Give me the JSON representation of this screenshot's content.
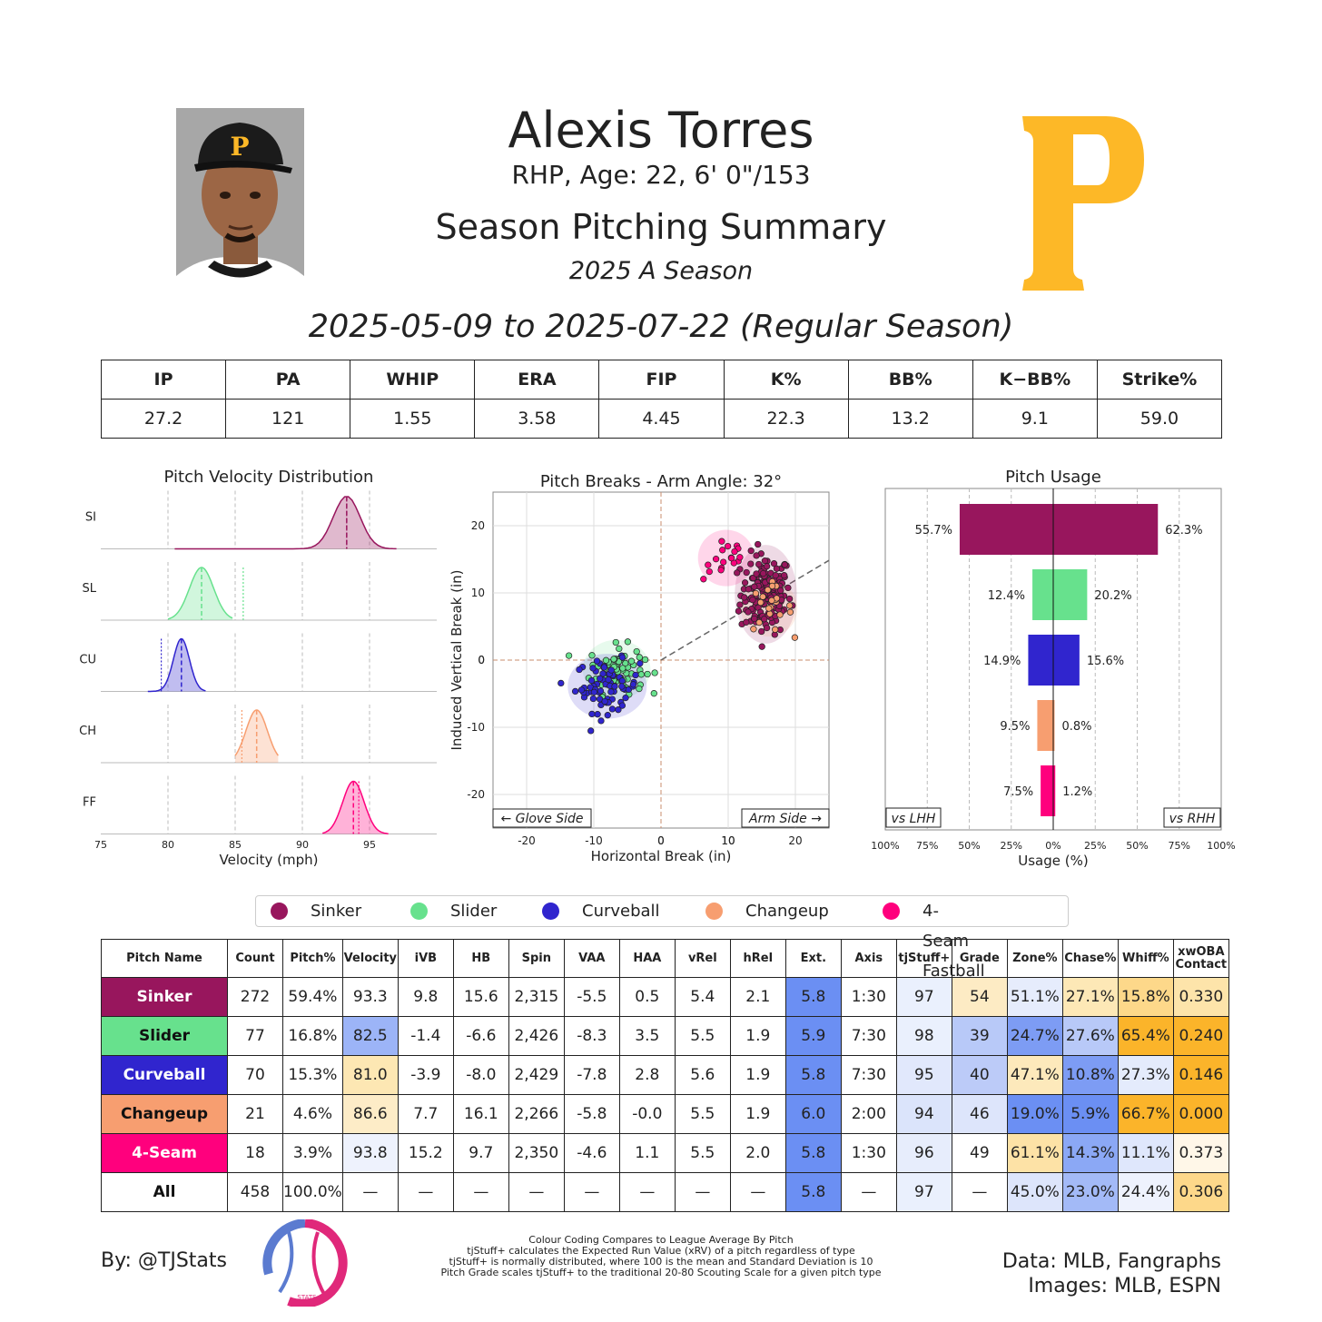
{
  "header": {
    "name": "Alexis Torres",
    "info": "RHP, Age: 22, 6' 0\"/153",
    "title": "Season Pitching Summary",
    "season": "2025 A Season",
    "date_range": "2025-05-09 to 2025-07-22 (Regular Season)"
  },
  "colors": {
    "Sinker": "#98165d",
    "Slider": "#67e18d",
    "Curveball": "#3025ce",
    "Changeup": "#f79e70",
    "4-Seam Fastball": "#ff007d",
    "team_gold": "#fdb827"
  },
  "season_stats": {
    "headers": [
      "IP",
      "PA",
      "WHIP",
      "ERA",
      "FIP",
      "K%",
      "BB%",
      "K−BB%",
      "Strike%"
    ],
    "values": [
      "27.2",
      "121",
      "1.55",
      "3.58",
      "4.45",
      "22.3",
      "13.2",
      "9.1",
      "59.0"
    ]
  },
  "chart_data": [
    {
      "type": "area",
      "title": "Pitch Velocity Distribution",
      "xlabel": "Velocity (mph)",
      "xlim": [
        75,
        100
      ],
      "xticks": [
        "75",
        "80",
        "85",
        "90",
        "95"
      ],
      "series": [
        {
          "name": "SI",
          "color": "#98165d",
          "range": [
            80.5,
            97.0
          ],
          "mean": 93.3,
          "sd": 1.0,
          "league": 93.3
        },
        {
          "name": "SL",
          "color": "#67e18d",
          "range": [
            80.0,
            84.8
          ],
          "mean": 82.5,
          "sd": 0.9,
          "league": 85.6
        },
        {
          "name": "CU",
          "color": "#3025ce",
          "range": [
            78.5,
            82.8
          ],
          "mean": 81.0,
          "sd": 0.6,
          "league": 79.5
        },
        {
          "name": "CH",
          "color": "#f79e70",
          "range": [
            85.0,
            88.2
          ],
          "mean": 86.6,
          "sd": 0.8,
          "league": 85.5
        },
        {
          "name": "FF",
          "color": "#ff007d",
          "range": [
            91.5,
            96.4
          ],
          "mean": 93.8,
          "sd": 0.8,
          "league": 94.2
        }
      ]
    },
    {
      "type": "scatter",
      "title": "Pitch Breaks - Arm Angle: 32°",
      "xlabel": "Horizontal Break (in)",
      "ylabel": "Induced Vertical Break (in)",
      "xlim": [
        -25,
        25
      ],
      "ylim": [
        -25,
        25
      ],
      "xticks": [
        "-20",
        "-10",
        "0",
        "10",
        "20"
      ],
      "yticks": [
        "20",
        "10",
        "0",
        "-10",
        "-20"
      ],
      "arm_angle_deg": 32,
      "glove_label": "← Glove Side",
      "arm_label": "Arm Side →",
      "series": [
        {
          "name": "Sinker",
          "color": "#98165d",
          "count": 272,
          "hb": 15.6,
          "ivb": 9.8,
          "sd_hb": 2.2,
          "sd_ivb": 3.5
        },
        {
          "name": "Slider",
          "color": "#67e18d",
          "count": 77,
          "hb": -6.6,
          "ivb": -1.4,
          "sd_hb": 2.4,
          "sd_ivb": 2.1
        },
        {
          "name": "Curveball",
          "color": "#3025ce",
          "count": 70,
          "hb": -8.0,
          "ivb": -3.9,
          "sd_hb": 2.8,
          "sd_ivb": 2.3
        },
        {
          "name": "Changeup",
          "color": "#f79e70",
          "count": 21,
          "hb": 16.1,
          "ivb": 7.7,
          "sd_hb": 2.0,
          "sd_ivb": 2.0
        },
        {
          "name": "4-Seam Fastball",
          "color": "#ff007d",
          "count": 18,
          "hb": 9.7,
          "ivb": 15.2,
          "sd_hb": 2.0,
          "sd_ivb": 2.0
        }
      ]
    },
    {
      "type": "bar",
      "title": "Pitch Usage",
      "xlabel": "Usage (%)",
      "xlim": [
        -100,
        100
      ],
      "xticks": [
        "100%",
        "75%",
        "50%",
        "25%",
        "0%",
        "25%",
        "50%",
        "75%",
        "100%"
      ],
      "left_label": "vs LHH",
      "right_label": "vs RHH",
      "categories": [
        "Sinker",
        "Slider",
        "Curveball",
        "Changeup",
        "4-Seam Fastball"
      ],
      "series": [
        {
          "name": "vs LHH",
          "values": [
            55.7,
            12.4,
            14.9,
            9.5,
            7.5
          ],
          "labels": [
            "55.7%",
            "12.4%",
            "14.9%",
            "9.5%",
            "7.5%"
          ]
        },
        {
          "name": "vs RHH",
          "values": [
            62.3,
            20.2,
            15.6,
            0.8,
            1.2
          ],
          "labels": [
            "62.3%",
            "20.2%",
            "15.6%",
            "0.8%",
            "1.2%"
          ]
        }
      ]
    }
  ],
  "legend": [
    "Sinker",
    "Slider",
    "Curveball",
    "Changeup",
    "4-Seam Fastball"
  ],
  "pitch_table": {
    "headers": [
      "Pitch Name",
      "Count",
      "Pitch%",
      "Velocity",
      "iVB",
      "HB",
      "Spin",
      "VAA",
      "HAA",
      "vRel",
      "hRel",
      "Ext.",
      "Axis",
      "tjStuff+",
      "Grade",
      "Zone%",
      "Chase%",
      "Whiff%",
      "xwOBA Contact"
    ],
    "rows": [
      {
        "name": "Sinker",
        "bg": "#98165d",
        "fg": "#ffffff",
        "cells": [
          "272",
          "59.4%",
          "93.3",
          "9.8",
          "15.6",
          "2,315",
          "-5.5",
          "0.5",
          "5.4",
          "2.1",
          "5.8",
          "1:30",
          "97",
          "54",
          "51.1%",
          "27.1%",
          "15.8%",
          "0.330"
        ],
        "shades": [
          "",
          "",
          "",
          "",
          "",
          "",
          "",
          "",
          "",
          "",
          "#6b8ff3",
          "",
          "#eaf0fd",
          "#fdebc4",
          "#e6ecfc",
          "#fde8b6",
          "#fdd88a",
          "#fde4aa"
        ]
      },
      {
        "name": "Slider",
        "bg": "#67e18d",
        "fg": "#111111",
        "cells": [
          "77",
          "16.8%",
          "82.5",
          "-1.4",
          "-6.6",
          "2,426",
          "-8.3",
          "3.5",
          "5.5",
          "1.9",
          "5.9",
          "7:30",
          "98",
          "39",
          "24.7%",
          "27.6%",
          "65.4%",
          "0.240"
        ],
        "shades": [
          "",
          "",
          "#9cb4f7",
          "",
          "",
          "",
          "",
          "",
          "",
          "",
          "#6b8ff3",
          "",
          "#eaf0fd",
          "#b8c9f8",
          "#7d9cf4",
          "#b8c9f8",
          "#fbb42a",
          "#fbb42a"
        ]
      },
      {
        "name": "Curveball",
        "bg": "#3025ce",
        "fg": "#ffffff",
        "cells": [
          "70",
          "15.3%",
          "81.0",
          "-3.9",
          "-8.0",
          "2,429",
          "-7.8",
          "2.8",
          "5.6",
          "1.9",
          "5.8",
          "7:30",
          "95",
          "40",
          "47.1%",
          "10.8%",
          "27.3%",
          "0.146"
        ],
        "shades": [
          "",
          "",
          "#fde7b3",
          "",
          "",
          "",
          "",
          "",
          "",
          "",
          "#6b8ff3",
          "",
          "#e1e8fc",
          "#bccbf8",
          "#fde9bb",
          "#7d9cf4",
          "#e4ebfc",
          "#fbb42a"
        ]
      },
      {
        "name": "Changeup",
        "bg": "#f79e70",
        "fg": "#111111",
        "cells": [
          "21",
          "4.6%",
          "86.6",
          "7.7",
          "16.1",
          "2,266",
          "-5.8",
          "-0.0",
          "5.5",
          "1.9",
          "6.0",
          "2:00",
          "94",
          "46",
          "19.0%",
          "5.9%",
          "66.7%",
          "0.000"
        ],
        "shades": [
          "",
          "",
          "#fdecc7",
          "",
          "",
          "",
          "",
          "",
          "",
          "",
          "#6b8ff3",
          "",
          "#dbe4fb",
          "#dde5fb",
          "#6b8ff3",
          "#6b8ff3",
          "#fbb42a",
          "#fbb42a"
        ]
      },
      {
        "name": "4-Seam",
        "bg": "#ff007d",
        "fg": "#ffffff",
        "cells": [
          "18",
          "3.9%",
          "93.8",
          "15.2",
          "9.7",
          "2,350",
          "-4.6",
          "1.1",
          "5.5",
          "2.0",
          "5.8",
          "1:30",
          "96",
          "49",
          "61.1%",
          "14.3%",
          "11.1%",
          "0.373"
        ],
        "shades": [
          "",
          "",
          "#eef2fd",
          "",
          "",
          "",
          "",
          "",
          "",
          "",
          "#6b8ff3",
          "",
          "#e7edfc",
          "",
          "#fde2a6",
          "#8ba8f5",
          "#dfe7fc",
          "#fff7e8"
        ]
      },
      {
        "name": "All",
        "bg": "#ffffff",
        "fg": "#111111",
        "cells": [
          "458",
          "100.0%",
          "—",
          "—",
          "—",
          "—",
          "—",
          "—",
          "—",
          "—",
          "5.8",
          "—",
          "97",
          "—",
          "45.0%",
          "23.0%",
          "24.4%",
          "0.306"
        ],
        "shades": [
          "",
          "",
          "",
          "",
          "",
          "",
          "",
          "",
          "",
          "",
          "#6b8ff3",
          "",
          "#eaf0fd",
          "",
          "#dde5fb",
          "#a3baf7",
          "#eef2fd",
          "#fdd88a"
        ]
      }
    ]
  },
  "footer": {
    "byline": "By: @TJStats",
    "logo_text": "STATS",
    "notes": [
      "Colour Coding Compares to League Average By Pitch",
      "tjStuff+ calculates the Expected Run Value (xRV) of a pitch regardless of type",
      "tjStuff+ is normally distributed, where 100 is the mean and Standard Deviation is 10",
      "Pitch Grade scales tjStuff+ to the traditional 20-80 Scouting Scale for a given pitch type"
    ],
    "sources": [
      "Data: MLB, Fangraphs",
      "Images: MLB, ESPN"
    ]
  }
}
